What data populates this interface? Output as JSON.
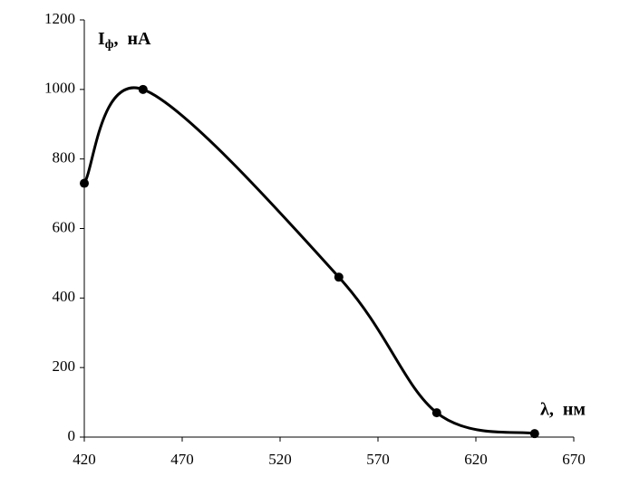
{
  "chart_data": {
    "type": "line",
    "xlabel": "λ,  нм",
    "ylabel": {
      "symbol": "I",
      "subscript": "ф",
      "rest": ",  нА"
    },
    "x": [
      420,
      450,
      550,
      600,
      650
    ],
    "series": [
      {
        "color": "#000000",
        "values": [
          730,
          1000,
          460,
          70,
          10
        ]
      }
    ],
    "xlim": [
      420,
      670
    ],
    "xticks": [
      420,
      470,
      520,
      570,
      620,
      670
    ],
    "ylim": [
      0,
      1200
    ],
    "yticks": [
      0,
      200,
      400,
      600,
      800,
      1000,
      1200
    ],
    "smooth": true,
    "markers": true,
    "grid": false
  }
}
